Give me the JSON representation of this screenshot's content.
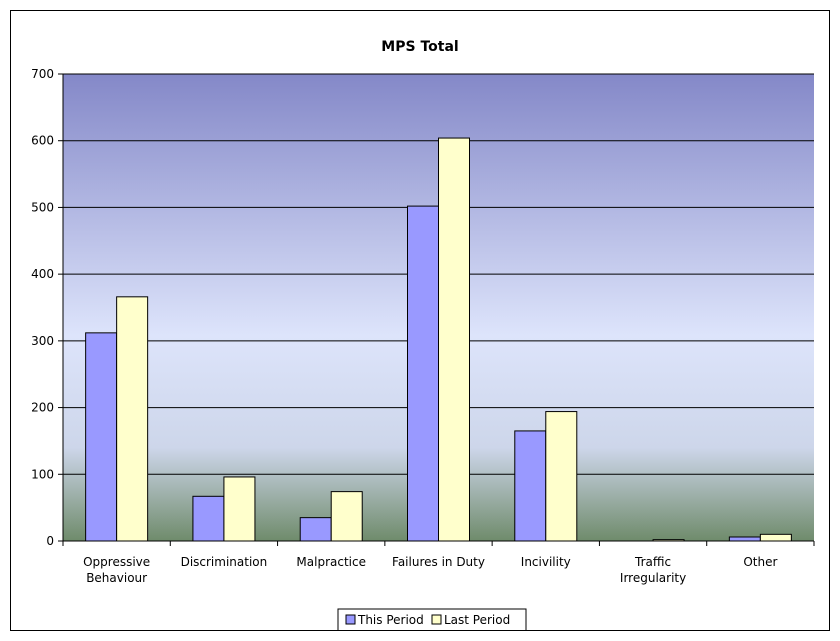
{
  "chart_data": {
    "type": "bar",
    "title": "MPS Total",
    "xlabel": "",
    "ylabel": "",
    "categories": [
      [
        "Oppressive",
        "Behaviour"
      ],
      [
        "Discrimination"
      ],
      [
        "Malpractice"
      ],
      [
        "Failures in Duty"
      ],
      [
        "Incivility"
      ],
      [
        "Traffic",
        "Irregularity"
      ],
      [
        "Other"
      ]
    ],
    "series": [
      {
        "name": "This Period",
        "color": "#9999ff",
        "values": [
          312,
          67,
          35,
          502,
          165,
          0,
          6
        ]
      },
      {
        "name": "Last Period",
        "color": "#ffffcc",
        "values": [
          366,
          96,
          74,
          604,
          194,
          2,
          10
        ]
      }
    ],
    "ylim": [
      0,
      700
    ],
    "yticks": [
      0,
      100,
      200,
      300,
      400,
      500,
      600,
      700
    ],
    "grid": true,
    "legend": "bottom",
    "plot_background": [
      "#8488c8",
      "#dde4fb",
      "#6f8b6b"
    ]
  }
}
